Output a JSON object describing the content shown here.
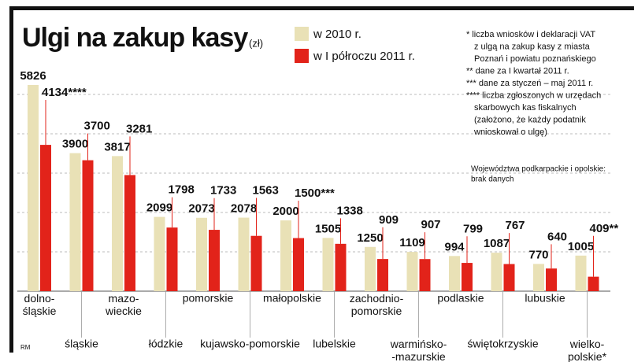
{
  "chart_data": {
    "type": "bar",
    "title": "Ulgi na zakup kasy",
    "subtitle": "(zł)",
    "categories": [
      "dolno-\nśląskie",
      "śląskie",
      "mazo-\nwieckie",
      "łódzkie",
      "pomorskie",
      "kujawsko-pomorskie",
      "małopolskie",
      "lubelskie",
      "zachodnio-\npomorskie",
      "warmińsko-\n-mazurskie",
      "podlaskie",
      "świętokrzyskie",
      "lubuskie",
      "wielko-\npolskie*"
    ],
    "series": [
      {
        "name": "w 2010 r.",
        "color": "#e9e1b6",
        "values": [
          5826,
          3900,
          3817,
          2099,
          2073,
          2078,
          2000,
          1505,
          1250,
          1109,
          994,
          1087,
          770,
          1005
        ]
      },
      {
        "name": "w I półroczu 2011 r.",
        "color": "#e2231a",
        "values": [
          4134,
          3700,
          3281,
          1798,
          1733,
          1563,
          1500,
          1338,
          909,
          907,
          799,
          767,
          640,
          409
        ],
        "value_labels": [
          "4134****",
          "3700",
          "3281",
          "1798",
          "1733",
          "1563",
          "1500***",
          "1338",
          "909",
          "907",
          "799",
          "767",
          "640",
          "409**"
        ]
      }
    ],
    "notes": [
      "* liczba wniosków i deklaracji VAT",
      "z ulgą na zakup kasy z miasta",
      "Poznań i powiatu poznańskiego",
      "** dane za I kwartał 2011 r.",
      "*** dane za styczeń – maj 2011 r.",
      "**** liczba zgłoszonych w urzędach",
      "skarbowych kas fiskalnych",
      "(założono, że każdy podatnik",
      "wnioskował o ulgę)"
    ],
    "note2": [
      "Województwa podkarpackie i opolskie:",
      "brak danych"
    ],
    "credit": "RM"
  }
}
